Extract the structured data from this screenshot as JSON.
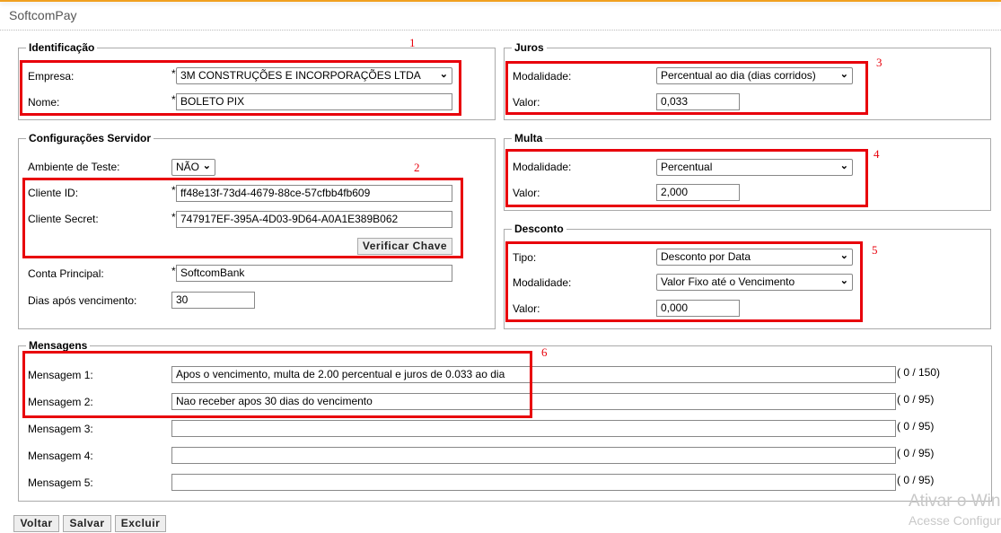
{
  "app": {
    "title": "SoftcomPay"
  },
  "identificacao": {
    "legend": "Identificação",
    "empresa_label": "Empresa:",
    "empresa_value": "3M CONSTRUÇÕES E INCORPORAÇÕES LTDA",
    "nome_label": "Nome:",
    "nome_value": "BOLETO PIX"
  },
  "servidor": {
    "legend": "Configurações Servidor",
    "ambiente_label": "Ambiente de Teste:",
    "ambiente_value": "NÃO",
    "cliente_id_label": "Cliente ID:",
    "cliente_id_value": "ff48e13f-73d4-4679-88ce-57cfbb4fb609",
    "cliente_secret_label": "Cliente Secret:",
    "cliente_secret_value": "747917EF-395A-4D03-9D64-A0A1E389B062",
    "verificar_label": "Verificar Chave",
    "conta_label": "Conta Principal:",
    "conta_value": "SoftcomBank",
    "dias_label": "Dias após vencimento:",
    "dias_value": "30"
  },
  "juros": {
    "legend": "Juros",
    "modalidade_label": "Modalidade:",
    "modalidade_value": "Percentual ao dia (dias corridos)",
    "valor_label": "Valor:",
    "valor_value": "0,033"
  },
  "multa": {
    "legend": "Multa",
    "modalidade_label": "Modalidade:",
    "modalidade_value": "Percentual",
    "valor_label": "Valor:",
    "valor_value": "2,000"
  },
  "desconto": {
    "legend": "Desconto",
    "tipo_label": "Tipo:",
    "tipo_value": "Desconto por Data",
    "modalidade_label": "Modalidade:",
    "modalidade_value": "Valor Fixo até o Vencimento",
    "valor_label": "Valor:",
    "valor_value": "0,000"
  },
  "mensagens": {
    "legend": "Mensagens",
    "items": [
      {
        "label": "Mensagem 1:",
        "value": "Apos o vencimento, multa de 2.00 percentual e juros de 0.033 ao dia",
        "counter": "( 0 / 150)"
      },
      {
        "label": "Mensagem 2:",
        "value": "Nao receber apos 30 dias do vencimento",
        "counter": "( 0 / 95)"
      },
      {
        "label": "Mensagem 3:",
        "value": "",
        "counter": "( 0 / 95)"
      },
      {
        "label": "Mensagem 4:",
        "value": "",
        "counter": "( 0 / 95)"
      },
      {
        "label": "Mensagem 5:",
        "value": "",
        "counter": "( 0 / 95)"
      }
    ]
  },
  "annotations": [
    "1",
    "2",
    "3",
    "4",
    "5",
    "6"
  ],
  "required_mark": "*",
  "buttons": {
    "voltar": "Voltar",
    "salvar": "Salvar",
    "excluir": "Excluir"
  },
  "watermark": {
    "line1": "Ativar o Windows",
    "line2": "Acesse Configurações"
  },
  "colors": {
    "accent": "#f0a020",
    "highlight": "#e8000b"
  }
}
